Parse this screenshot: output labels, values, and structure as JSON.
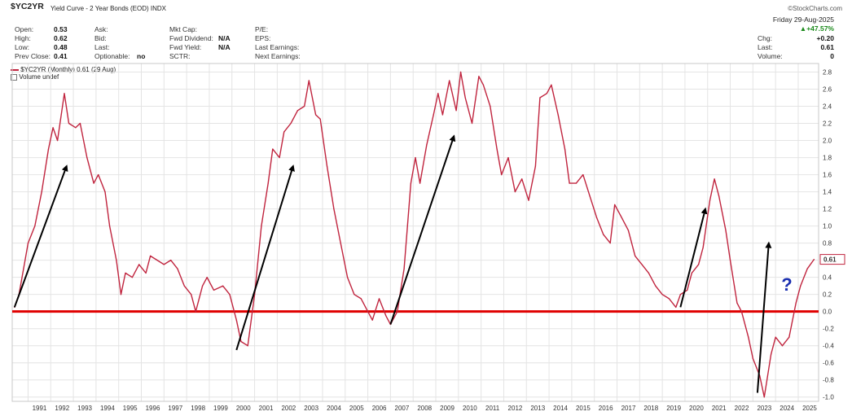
{
  "header": {
    "ticker": "$YC2YR",
    "title": "Yield Curve - 2 Year Bonds (EOD)",
    "exchange": "INDX",
    "watermark": "©StockCharts.com",
    "date": "Friday 29-Aug-2025",
    "change_pct": "▲+47.57%",
    "stats_left": [
      {
        "label": "Open:",
        "value": "0.53"
      },
      {
        "label": "High:",
        "value": "0.62"
      },
      {
        "label": "Low:",
        "value": "0.48"
      },
      {
        "label": "Prev Close:",
        "value": "0.41"
      }
    ],
    "stats_mid": [
      {
        "label": "Ask:",
        "value": ""
      },
      {
        "label": "Bid:",
        "value": ""
      },
      {
        "label": "Last:",
        "value": ""
      },
      {
        "label": "Optionable:",
        "value": "no"
      }
    ],
    "stats_mid2": [
      {
        "label": "Mkt Cap:",
        "value": ""
      },
      {
        "label": "Fwd Dividend:",
        "value": "N/A"
      },
      {
        "label": "Fwd Yield:",
        "value": "N/A"
      },
      {
        "label": "SCTR:",
        "value": ""
      }
    ],
    "stats_mid3": [
      {
        "label": "P/E:"
      },
      {
        "label": "EPS:"
      },
      {
        "label": "Last Earnings:"
      },
      {
        "label": "Next Earnings:"
      }
    ],
    "stats_right": [
      {
        "label": "Chg:",
        "value": "+0.20"
      },
      {
        "label": "Last:",
        "value": "0.61"
      },
      {
        "label": "Volume:",
        "value": "0"
      }
    ]
  },
  "legend": {
    "series": "$YC2YR (Monthly) 0.61 (29 Aug)",
    "volume": "Volume undef"
  },
  "annotation": "?",
  "colors": {
    "line": "#c0243e",
    "zero_line": "#e00000",
    "arrow": "#000000",
    "question": "#1a2fb0",
    "grid": "#e4e4e4"
  },
  "chart_data": {
    "type": "line",
    "title": "Yield Curve - 2 Year Bonds (EOD)",
    "xlabel": "",
    "ylabel": "",
    "ylim": [
      -1.05,
      2.9
    ],
    "xlim": [
      1990.3,
      2025.9
    ],
    "grid": true,
    "y_ticks": [
      "2.8",
      "2.6",
      "2.4",
      "2.2",
      "2.0",
      "1.8",
      "1.6",
      "1.4",
      "1.2",
      "1.0",
      "0.8",
      "0.6",
      "0.4",
      "0.2",
      "0.0",
      "-0.2",
      "-0.4",
      "-0.6",
      "-0.8",
      "-1.0"
    ],
    "x_ticks": [
      "1991",
      "1992",
      "1993",
      "1994",
      "1995",
      "1996",
      "1997",
      "1998",
      "1999",
      "2000",
      "2001",
      "2002",
      "2003",
      "2004",
      "2005",
      "2006",
      "2007",
      "2008",
      "2009",
      "2010",
      "2011",
      "2012",
      "2013",
      "2014",
      "2015",
      "2016",
      "2017",
      "2018",
      "2019",
      "2020",
      "2021",
      "2022",
      "2023",
      "2024",
      "2025"
    ],
    "last_value_label": "0.61",
    "reference_line": 0.0,
    "series": [
      {
        "name": "$YC2YR (Monthly)",
        "points": [
          [
            1990.4,
            0.05
          ],
          [
            1990.6,
            0.2
          ],
          [
            1990.8,
            0.5
          ],
          [
            1991.0,
            0.8
          ],
          [
            1991.3,
            1.0
          ],
          [
            1991.6,
            1.4
          ],
          [
            1991.9,
            1.9
          ],
          [
            1992.1,
            2.15
          ],
          [
            1992.3,
            2.0
          ],
          [
            1992.6,
            2.55
          ],
          [
            1992.8,
            2.2
          ],
          [
            1993.1,
            2.15
          ],
          [
            1993.3,
            2.2
          ],
          [
            1993.6,
            1.8
          ],
          [
            1993.9,
            1.5
          ],
          [
            1994.1,
            1.6
          ],
          [
            1994.4,
            1.4
          ],
          [
            1994.6,
            1.0
          ],
          [
            1994.9,
            0.6
          ],
          [
            1995.1,
            0.2
          ],
          [
            1995.3,
            0.45
          ],
          [
            1995.6,
            0.4
          ],
          [
            1995.9,
            0.55
          ],
          [
            1996.2,
            0.45
          ],
          [
            1996.4,
            0.65
          ],
          [
            1996.7,
            0.6
          ],
          [
            1997.0,
            0.55
          ],
          [
            1997.3,
            0.6
          ],
          [
            1997.6,
            0.5
          ],
          [
            1997.9,
            0.3
          ],
          [
            1998.2,
            0.2
          ],
          [
            1998.4,
            0.0
          ],
          [
            1998.7,
            0.3
          ],
          [
            1998.9,
            0.4
          ],
          [
            1999.2,
            0.25
          ],
          [
            1999.6,
            0.3
          ],
          [
            1999.9,
            0.2
          ],
          [
            2000.2,
            -0.1
          ],
          [
            2000.4,
            -0.35
          ],
          [
            2000.7,
            -0.4
          ],
          [
            2001.0,
            0.2
          ],
          [
            2001.3,
            1.0
          ],
          [
            2001.6,
            1.5
          ],
          [
            2001.8,
            1.9
          ],
          [
            2002.1,
            1.8
          ],
          [
            2002.3,
            2.1
          ],
          [
            2002.6,
            2.2
          ],
          [
            2002.9,
            2.35
          ],
          [
            2003.2,
            2.4
          ],
          [
            2003.4,
            2.7
          ],
          [
            2003.7,
            2.3
          ],
          [
            2003.9,
            2.25
          ],
          [
            2004.2,
            1.7
          ],
          [
            2004.5,
            1.2
          ],
          [
            2004.8,
            0.8
          ],
          [
            2005.1,
            0.4
          ],
          [
            2005.4,
            0.2
          ],
          [
            2005.7,
            0.15
          ],
          [
            2006.0,
            0.0
          ],
          [
            2006.2,
            -0.1
          ],
          [
            2006.5,
            0.15
          ],
          [
            2006.8,
            -0.05
          ],
          [
            2007.0,
            -0.15
          ],
          [
            2007.3,
            0.0
          ],
          [
            2007.6,
            0.5
          ],
          [
            2007.9,
            1.5
          ],
          [
            2008.1,
            1.8
          ],
          [
            2008.3,
            1.5
          ],
          [
            2008.6,
            1.95
          ],
          [
            2008.9,
            2.3
          ],
          [
            2009.1,
            2.55
          ],
          [
            2009.3,
            2.3
          ],
          [
            2009.6,
            2.7
          ],
          [
            2009.9,
            2.35
          ],
          [
            2010.1,
            2.8
          ],
          [
            2010.3,
            2.5
          ],
          [
            2010.6,
            2.2
          ],
          [
            2010.9,
            2.75
          ],
          [
            2011.1,
            2.65
          ],
          [
            2011.4,
            2.4
          ],
          [
            2011.7,
            1.9
          ],
          [
            2011.9,
            1.6
          ],
          [
            2012.2,
            1.8
          ],
          [
            2012.5,
            1.4
          ],
          [
            2012.8,
            1.55
          ],
          [
            2013.1,
            1.3
          ],
          [
            2013.4,
            1.7
          ],
          [
            2013.6,
            2.5
          ],
          [
            2013.9,
            2.55
          ],
          [
            2014.1,
            2.65
          ],
          [
            2014.4,
            2.3
          ],
          [
            2014.7,
            1.9
          ],
          [
            2014.9,
            1.5
          ],
          [
            2015.2,
            1.5
          ],
          [
            2015.5,
            1.6
          ],
          [
            2015.8,
            1.35
          ],
          [
            2016.1,
            1.1
          ],
          [
            2016.4,
            0.9
          ],
          [
            2016.7,
            0.8
          ],
          [
            2016.9,
            1.25
          ],
          [
            2017.2,
            1.1
          ],
          [
            2017.5,
            0.95
          ],
          [
            2017.8,
            0.65
          ],
          [
            2018.1,
            0.55
          ],
          [
            2018.4,
            0.45
          ],
          [
            2018.7,
            0.3
          ],
          [
            2019.0,
            0.2
          ],
          [
            2019.3,
            0.15
          ],
          [
            2019.6,
            0.05
          ],
          [
            2019.8,
            0.2
          ],
          [
            2020.1,
            0.25
          ],
          [
            2020.3,
            0.45
          ],
          [
            2020.6,
            0.55
          ],
          [
            2020.8,
            0.75
          ],
          [
            2021.1,
            1.3
          ],
          [
            2021.3,
            1.55
          ],
          [
            2021.5,
            1.35
          ],
          [
            2021.8,
            0.95
          ],
          [
            2022.0,
            0.6
          ],
          [
            2022.3,
            0.1
          ],
          [
            2022.5,
            0.0
          ],
          [
            2022.8,
            -0.3
          ],
          [
            2023.0,
            -0.55
          ],
          [
            2023.3,
            -0.75
          ],
          [
            2023.5,
            -1.0
          ],
          [
            2023.8,
            -0.5
          ],
          [
            2024.0,
            -0.3
          ],
          [
            2024.3,
            -0.4
          ],
          [
            2024.6,
            -0.3
          ],
          [
            2024.9,
            0.1
          ],
          [
            2025.1,
            0.3
          ],
          [
            2025.4,
            0.5
          ],
          [
            2025.7,
            0.61
          ]
        ]
      }
    ],
    "annotations": [
      {
        "type": "arrow",
        "from": [
          1990.4,
          0.05
        ],
        "to": [
          1992.7,
          1.7
        ]
      },
      {
        "type": "arrow",
        "from": [
          2000.2,
          -0.45
        ],
        "to": [
          2002.7,
          1.7
        ]
      },
      {
        "type": "arrow",
        "from": [
          2007.0,
          -0.15
        ],
        "to": [
          2009.8,
          2.05
        ]
      },
      {
        "type": "arrow",
        "from": [
          2019.8,
          0.05
        ],
        "to": [
          2020.9,
          1.2
        ]
      },
      {
        "type": "arrow",
        "from": [
          2023.2,
          -0.95
        ],
        "to": [
          2023.7,
          0.8
        ]
      }
    ]
  }
}
